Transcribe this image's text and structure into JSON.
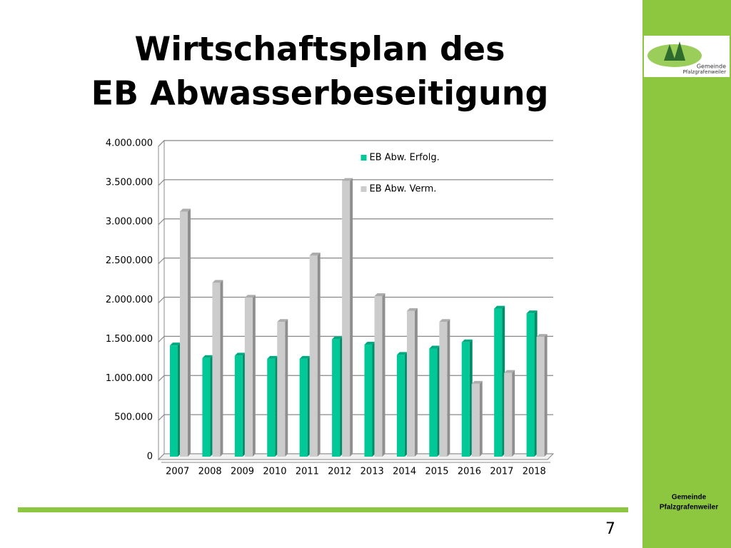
{
  "slide": {
    "title_lines": [
      "Wirtschaftsplan des",
      "EB Abwasserbeseitigung"
    ],
    "page_number": "7",
    "footer": [
      "Gemeinde",
      "Pfalzgrafenweiler"
    ],
    "logo_text": [
      "Gemeinde",
      "Pfalzgrafenweiler"
    ]
  },
  "chart_data": {
    "type": "bar",
    "categories": [
      "2007",
      "2008",
      "2009",
      "2010",
      "2011",
      "2012",
      "2013",
      "2014",
      "2015",
      "2016",
      "2017",
      "2018"
    ],
    "series": [
      {
        "name": "EB Abw. Erfolg.",
        "color": "#00c896",
        "values": [
          1420000,
          1260000,
          1290000,
          1250000,
          1250000,
          1500000,
          1430000,
          1300000,
          1380000,
          1460000,
          1890000,
          1830000
        ]
      },
      {
        "name": "EB Abw. Verm.",
        "color": "#cccccc",
        "values": [
          3130000,
          2220000,
          2030000,
          1720000,
          2570000,
          3520000,
          2050000,
          1860000,
          1720000,
          930000,
          1070000,
          1530000
        ]
      }
    ],
    "ylim": [
      0,
      4000000
    ],
    "yticks": [
      0,
      {
        "value": 500000,
        "label": "500.000"
      },
      {
        "value": 1000000,
        "label": "1.000.000"
      },
      {
        "value": 1500000,
        "label": "1.500.000"
      },
      {
        "value": 2000000,
        "label": "2.000.000"
      },
      {
        "value": 2500000,
        "label": "2.500.000"
      },
      {
        "value": 3000000,
        "label": "3.000.000"
      },
      {
        "value": 3500000,
        "label": "3.500.000"
      },
      {
        "value": 4000000,
        "label": "4.000.000"
      }
    ],
    "grid": true,
    "legend": "top-right"
  }
}
